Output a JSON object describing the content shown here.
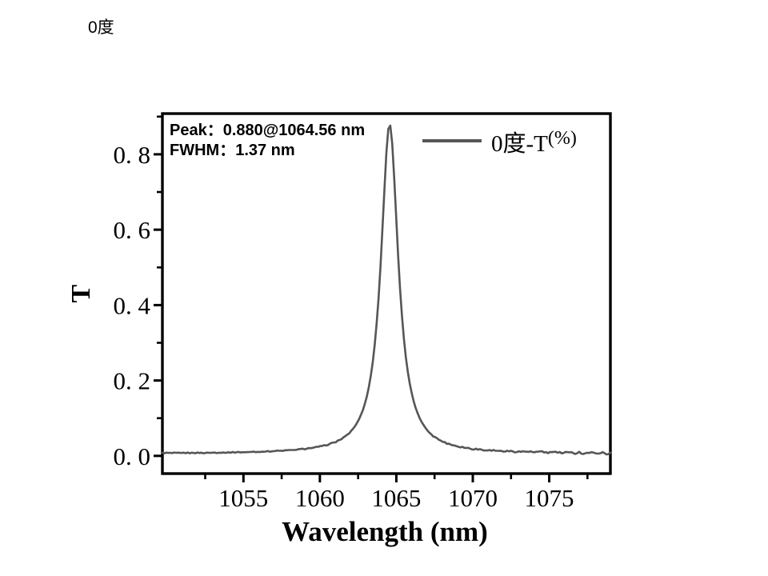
{
  "page": {
    "title": "0度"
  },
  "chart_data": {
    "type": "line",
    "title": "0度",
    "xlabel": "Wavelength (nm)",
    "ylabel": "T",
    "xlim": [
      1049.7,
      1079.0
    ],
    "ylim": [
      -0.047,
      0.908
    ],
    "grid": false,
    "frame": "full-box",
    "tick_direction": "out",
    "x_ticks": {
      "major_values": [
        1055,
        1060,
        1065,
        1070,
        1075
      ],
      "major_labels": [
        "1055",
        "1060",
        "1065",
        "1070",
        "1075"
      ],
      "minor_values": [
        1052.5,
        1057.5,
        1062.5,
        1067.5,
        1072.5,
        1077.5
      ]
    },
    "y_ticks": {
      "major_values": [
        0.0,
        0.2,
        0.4,
        0.6,
        0.8
      ],
      "major_labels": [
        "0. 0",
        "0. 2",
        "0. 4",
        "0. 6",
        "0. 8"
      ],
      "minor_values": [
        0.1,
        0.3,
        0.5,
        0.7,
        0.9
      ]
    },
    "legend": {
      "position": "top-right-inside",
      "label_main": "0度-T",
      "label_sup": "(%)",
      "full_label": "0度-T(%)"
    },
    "annotations": [
      "Peak：0.880@1064.56 nm",
      "FWHM：1.37 nm"
    ],
    "series": [
      {
        "name": "0度-T(%)",
        "color": "#565656",
        "line_width": 2.6,
        "peak": {
          "value": 0.88,
          "wavelength_nm": 1064.56,
          "fwhm_nm": 1.37
        },
        "baseline": 0.0055,
        "samples": [
          [
            1050.0,
            0.007
          ],
          [
            1052.0,
            0.008
          ],
          [
            1054.0,
            0.009
          ],
          [
            1056.0,
            0.011
          ],
          [
            1058.0,
            0.014
          ],
          [
            1060.0,
            0.024
          ],
          [
            1061.0,
            0.036
          ],
          [
            1062.0,
            0.063
          ],
          [
            1062.5,
            0.092
          ],
          [
            1063.0,
            0.146
          ],
          [
            1063.5,
            0.263
          ],
          [
            1063.8,
            0.397
          ],
          [
            1064.0,
            0.529
          ],
          [
            1064.2,
            0.691
          ],
          [
            1064.4,
            0.835
          ],
          [
            1064.56,
            0.88
          ],
          [
            1064.7,
            0.845
          ],
          [
            1064.9,
            0.707
          ],
          [
            1065.1,
            0.545
          ],
          [
            1065.3,
            0.409
          ],
          [
            1065.6,
            0.27
          ],
          [
            1066.0,
            0.166
          ],
          [
            1066.5,
            0.102
          ],
          [
            1067.0,
            0.069
          ],
          [
            1068.0,
            0.038
          ],
          [
            1069.0,
            0.025
          ],
          [
            1070.0,
            0.019
          ],
          [
            1072.0,
            0.012
          ],
          [
            1074.0,
            0.01
          ],
          [
            1076.0,
            0.008
          ],
          [
            1079.0,
            0.007
          ]
        ]
      }
    ]
  }
}
